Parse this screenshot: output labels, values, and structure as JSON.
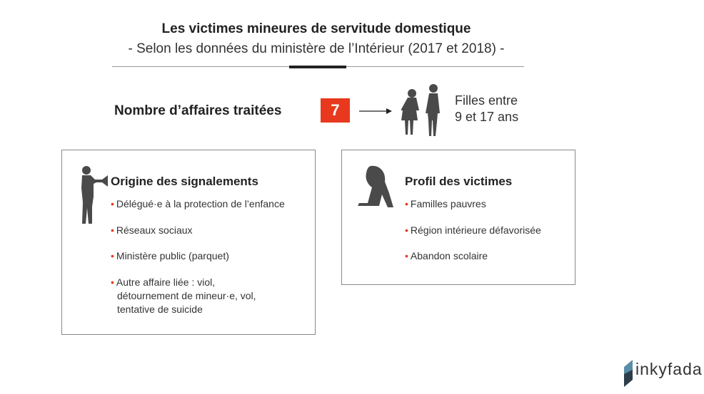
{
  "header": {
    "title": "Les victimes mineures de servitude domestique",
    "subtitle": "- Selon les données du ministère de l’Intérieur (2017 et 2018) -"
  },
  "count": {
    "label": "Nombre d’affaires traitées",
    "value": "7",
    "accent": "#e8391e",
    "icon": "two-girls-silhouette-icon",
    "description_line1": "Filles entre",
    "description_line2": "9 et 17 ans"
  },
  "origin": {
    "title": "Origine des signalements",
    "icon": "person-megaphone-icon",
    "items": [
      "Délégué·e à la protection de l’enfance",
      "Réseaux sociaux",
      "Ministère public (parquet)",
      "Autre affaire liée : viol,",
      "détournement de mineur·e, vol,",
      "tentative de suicide"
    ]
  },
  "profile": {
    "title": "Profil des victimes",
    "icon": "sitting-girl-silhouette-icon",
    "items": [
      "Familles pauvres",
      "Région intérieure défavorisée",
      "Abandon scolaire"
    ]
  },
  "brand": {
    "name": "inkyfada"
  }
}
